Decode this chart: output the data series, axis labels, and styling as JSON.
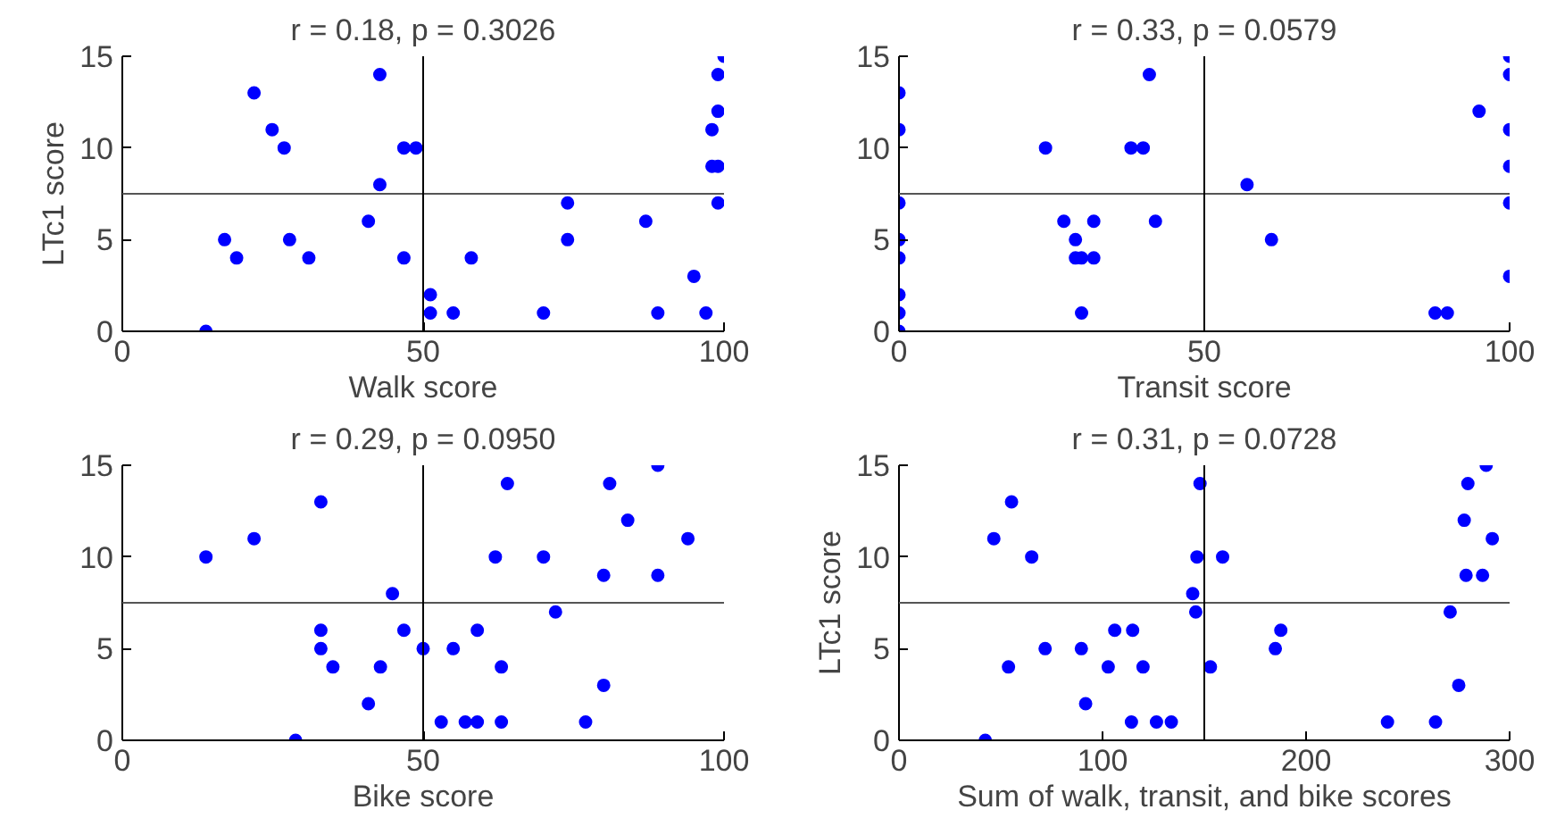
{
  "chart_data": [
    {
      "type": "scatter",
      "title": "r = 0.18, p = 0.3026",
      "xlabel": "Walk score",
      "ylabel": "LTc1 score",
      "marker": "circle",
      "color": "#0000ff",
      "x": [
        13.9,
        17,
        19,
        21.9,
        24.9,
        26.9,
        27.8,
        31,
        40.9,
        42.8,
        42.8,
        46.8,
        48.8,
        46.8,
        51.2,
        51.2,
        55,
        58,
        70,
        74,
        74,
        87,
        89,
        95,
        97,
        98,
        98,
        99,
        99,
        99,
        99,
        100
      ],
      "values": [
        0,
        5,
        4,
        13,
        11,
        10,
        5,
        4,
        6,
        14,
        8,
        10,
        10,
        4,
        2,
        1,
        1,
        4,
        1,
        7,
        5,
        6,
        1,
        3,
        1,
        11,
        9,
        9,
        12,
        14,
        7,
        15
      ],
      "xlim": [
        0,
        100
      ],
      "ylim": [
        0,
        15
      ],
      "xticks": [
        0,
        50,
        100
      ],
      "yticks": [
        0,
        5,
        10,
        15
      ],
      "ref_lines": [
        {
          "axis": "y",
          "value": 7.5,
          "color": "#555555"
        },
        {
          "axis": "x",
          "value": 50,
          "color": "#000000"
        }
      ]
    },
    {
      "type": "scatter",
      "title": "r = 0.33, p = 0.0579",
      "xlabel": "Transit score",
      "marker": "circle",
      "color": "#0000ff",
      "x": [
        0,
        0,
        0,
        0,
        0,
        0,
        0,
        0,
        24,
        27,
        28.9,
        28.9,
        29.9,
        29.9,
        31.9,
        31.9,
        38,
        40,
        41,
        42,
        57,
        61,
        87.8,
        89.8,
        95,
        100,
        100,
        100,
        100,
        100,
        100
      ],
      "values": [
        13,
        11,
        7,
        5,
        4,
        2,
        1,
        0,
        10,
        6,
        5,
        4,
        4,
        1,
        6,
        4,
        10,
        10,
        14,
        6,
        8,
        5,
        1,
        1,
        12,
        15,
        14,
        11,
        9,
        7,
        3
      ],
      "xlim": [
        0,
        100
      ],
      "ylim": [
        0,
        15
      ],
      "xticks": [
        0,
        50,
        100
      ],
      "yticks": [
        0,
        5,
        10,
        15
      ],
      "ref_lines": [
        {
          "axis": "y",
          "value": 7.5,
          "color": "#555555"
        },
        {
          "axis": "x",
          "value": 50,
          "color": "#000000"
        }
      ]
    },
    {
      "type": "scatter",
      "title": "r = 0.29, p = 0.0950",
      "xlabel": "Bike score",
      "marker": "circle",
      "color": "#0000ff",
      "x": [
        13.9,
        21.9,
        28.8,
        33,
        33,
        33,
        35,
        40.9,
        42.9,
        44.9,
        46.8,
        50,
        53,
        55,
        57,
        59,
        59,
        62,
        63,
        63,
        64,
        70,
        72,
        77,
        80,
        80,
        81,
        84,
        89,
        89,
        94
      ],
      "values": [
        10,
        11,
        0,
        13,
        6,
        5,
        4,
        2,
        4,
        8,
        6,
        5,
        1,
        5,
        1,
        1,
        6,
        10,
        4,
        1,
        14,
        10,
        7,
        1,
        3,
        9,
        14,
        12,
        15,
        9,
        11
      ],
      "xlim": [
        0,
        100
      ],
      "ylim": [
        0,
        15
      ],
      "xticks": [
        0,
        50,
        100
      ],
      "yticks": [
        0,
        5,
        10,
        15
      ],
      "ref_lines": [
        {
          "axis": "y",
          "value": 7.5,
          "color": "#555555"
        },
        {
          "axis": "x",
          "value": 50,
          "color": "#000000"
        }
      ]
    },
    {
      "type": "scatter",
      "title": "r = 0.31, p = 0.0728",
      "xlabel": "Sum of walk, transit, and bike scores",
      "ylabel": "LTc1 score",
      "marker": "circle",
      "color": "#0000ff",
      "x": [
        42.4,
        46.6,
        55.3,
        53.8,
        65.2,
        71.8,
        89.6,
        91.7,
        102.8,
        106,
        114.8,
        114.2,
        119.9,
        126.5,
        133.8,
        144.3,
        145.8,
        146.4,
        147.9,
        153,
        159,
        184.9,
        187.6,
        240,
        263.6,
        270.8,
        275,
        277.7,
        278.6,
        279.5,
        286.7,
        288.5,
        291.5
      ],
      "values": [
        0,
        11,
        13,
        4,
        10,
        5,
        5,
        2,
        4,
        6,
        6,
        1,
        4,
        1,
        1,
        8,
        7,
        10,
        14,
        4,
        10,
        5,
        6,
        1,
        1,
        7,
        3,
        12,
        9,
        14,
        9,
        15,
        11
      ],
      "xlim": [
        0,
        300
      ],
      "ylim": [
        0,
        15
      ],
      "xticks": [
        0,
        100,
        200,
        300
      ],
      "yticks": [
        0,
        5,
        10,
        15
      ],
      "ref_lines": [
        {
          "axis": "y",
          "value": 7.5,
          "color": "#555555"
        },
        {
          "axis": "x",
          "value": 150,
          "color": "#000000"
        }
      ]
    }
  ]
}
